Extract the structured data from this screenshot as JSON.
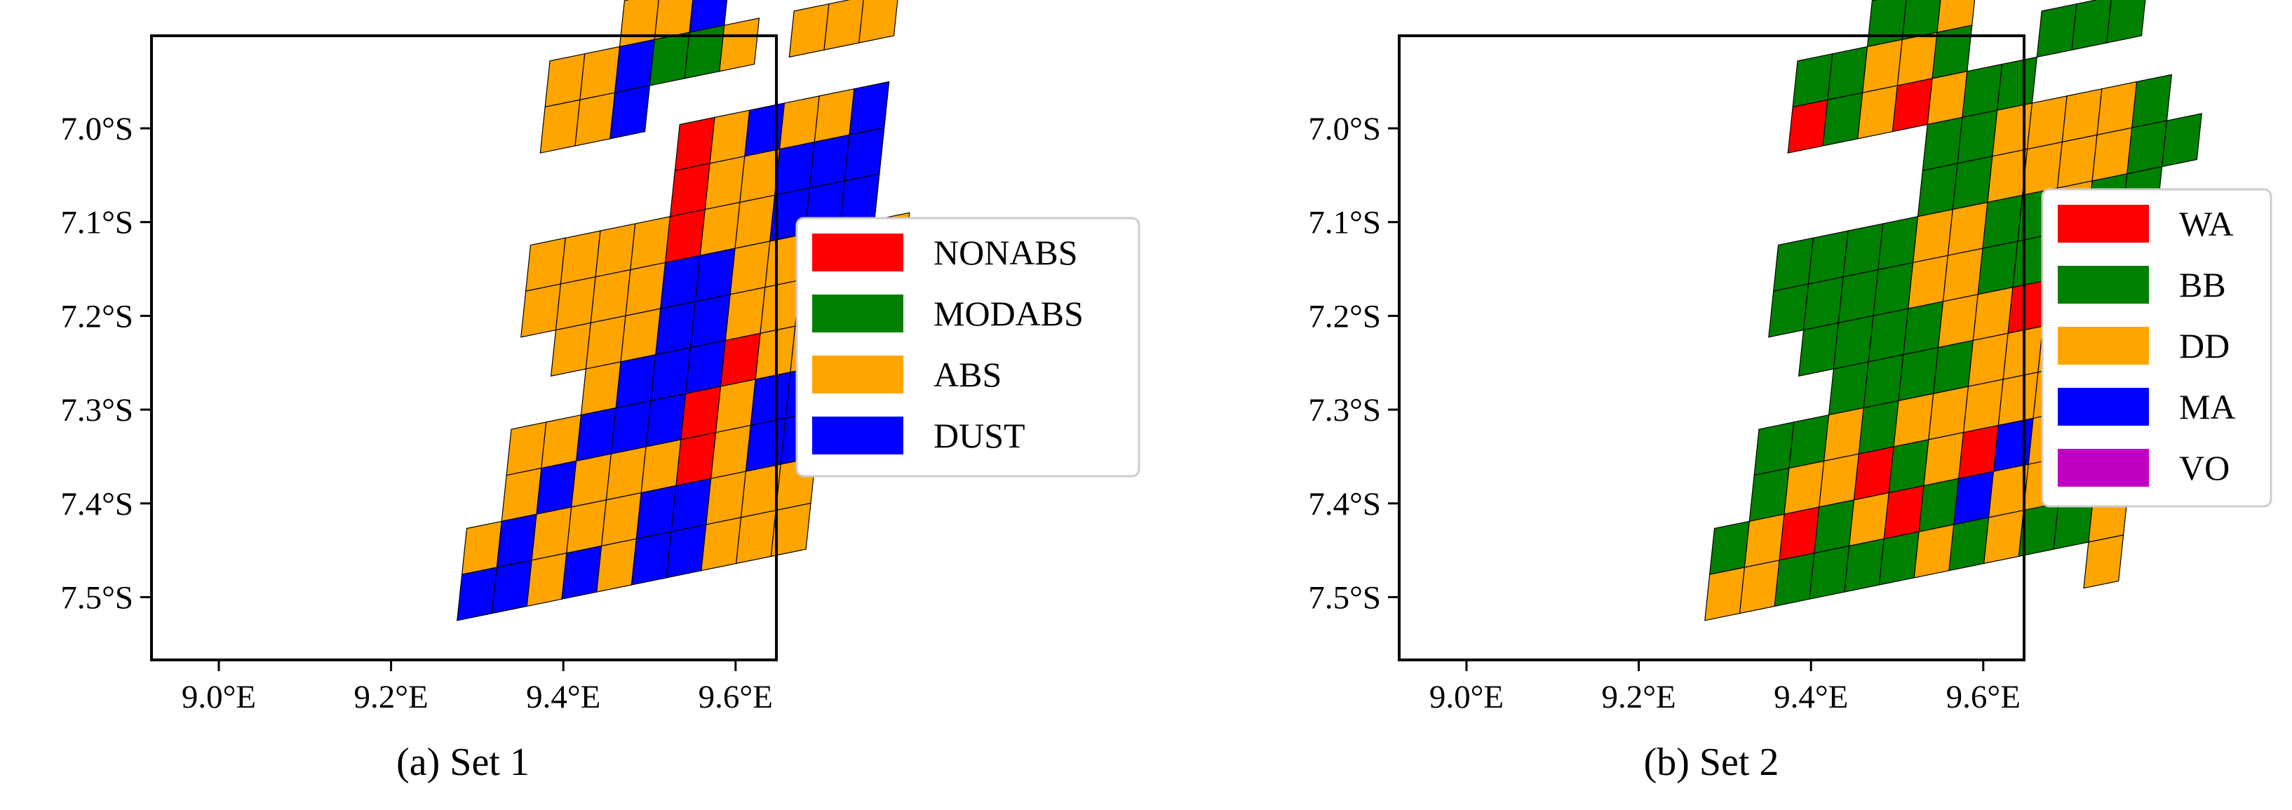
{
  "chart_data": [
    {
      "type": "heatmap",
      "caption": "(a) Set 1",
      "x_ticks": [
        {
          "value": 9.0,
          "label": "9.0°E"
        },
        {
          "value": 9.2,
          "label": "9.2°E"
        },
        {
          "value": 9.4,
          "label": "9.4°E"
        },
        {
          "value": 9.6,
          "label": "9.6°E"
        }
      ],
      "y_ticks": [
        {
          "value": 7.0,
          "label": "7.0°S"
        },
        {
          "value": 7.1,
          "label": "7.1°S"
        },
        {
          "value": 7.2,
          "label": "7.2°S"
        },
        {
          "value": 7.3,
          "label": "7.3°S"
        },
        {
          "value": 7.4,
          "label": "7.4°S"
        },
        {
          "value": 7.5,
          "label": "7.5°S"
        }
      ],
      "xlim": [
        8.93,
        9.64
      ],
      "ylim_south": [
        6.9,
        7.56
      ],
      "legend_position": "right",
      "legend": [
        {
          "key": "N",
          "label": "NONABS",
          "color": "#ff0000"
        },
        {
          "key": "M",
          "label": "MODABS",
          "color": "#008000"
        },
        {
          "key": "A",
          "label": "ABS",
          "color": "#ffa500"
        },
        {
          "key": "D",
          "label": "DUST",
          "color": "#0000ff"
        }
      ],
      "grid_origin": {
        "lon": 8.99,
        "lat": 6.88
      },
      "row_step": {
        "lon": -0.0053,
        "lat": 0.0489
      },
      "col_step": {
        "lon": 0.0409,
        "lat": -0.0079
      },
      "cells": [
        "..........ADD.........",
        "........AAD..AAA......",
        ".........ADMMA.AAA....",
        "...........N..AAD.....",
        "............N.ADDDD...",
        "............N...DDD...",
        "............N.......AA",
        "............ND.......D",
        "............D.........",
        "..........AA..........",
        "..........AA.........."
      ],
      "cells_v": [
        "..........AAD.........",
        "........ADMMA..AAA.....",
        "........ADMMAAADD......",
        "...........NAADAAD.....",
        "..........AAANADDDD....",
        "........AAAA.NAA.DDD...",
        "........AAAD.NA..DAA...",
        "........AAAAD.N.DDDA...",
        ".........AADDAAA.AAA...",
        ".........AADD..DDA.....",
        ".........AADA..........",
        "........AADA..........."
      ]
    }
  ],
  "sets": [
    {
      "caption": "(a) Set 1",
      "legend": [
        {
          "label": "NONABS",
          "color": "#ff0000"
        },
        {
          "label": "MODABS",
          "color": "#008000"
        },
        {
          "label": "ABS",
          "color": "#ffa500"
        },
        {
          "label": "DUST",
          "color": "#0000ff"
        }
      ],
      "rows": [
        "............AAD.........",
        "..........AADMMA.AAA....",
        "..........AAD...........",
        "..............NADAAD....",
        "..............NAADDD....",
        "..........AAAANAADDD....",
        "..........AAAADDAAADA...",
        "...........AAADDAAAD....",
        "............ADDDNAADM...",
        "..........AADDDNADDDA...",
        "..........ADAAANADDDA...",
        ".........ADAAADDAAA.....",
        ".........DDADADDAAA....."
      ]
    },
    {
      "caption": "(b) Set 2",
      "legend": [
        {
          "label": "WA",
          "color": "#ff0000"
        },
        {
          "label": "BB",
          "color": "#008000"
        },
        {
          "label": "DD",
          "color": "#ffa500"
        },
        {
          "label": "MA",
          "color": "#0000ff"
        },
        {
          "label": "VO",
          "color": "#c000c0"
        }
      ],
      "rows": [
        "............MMA.........",
        "..........MMAAM..MMM....",
        "..........NMANAMM.......",
        "..............MMAAAAM...",
        "..............MMAAAAMM..",
        "..........MMMMAAMMAMM...",
        "..........MMMMAAMMMMNA..",
        "...........MMMMAANMMMMA.",
        "............MMMMAAAAAAA.",
        "..........MMAMAAAAAAAM..",
        "..........MAANMANDAAAAM.",
        ".........MANMANMDAAMAA..",
        ".........AAMMMMAMAMMA...",
        "....................A..."
      ]
    }
  ],
  "panels": [
    {
      "caption": "(a) Set 1",
      "x_tick_labels": [
        "9.0°E",
        "9.2°E",
        "9.4°E",
        "9.6°E"
      ],
      "y_tick_labels": [
        "7.0°S",
        "7.1°S",
        "7.2°S",
        "7.3°S",
        "7.4°S",
        "7.5°S"
      ],
      "legend_labels": [
        "NONABS",
        "MODABS",
        "ABS",
        "DUST"
      ]
    },
    {
      "caption": "(b) Set 2",
      "x_tick_labels": [
        "9.0°E",
        "9.2°E",
        "9.4°E",
        "9.6°E"
      ],
      "y_tick_labels": [
        "7.0°S",
        "7.1°S",
        "7.2°S",
        "7.3°S",
        "7.4°S",
        "7.5°S"
      ],
      "legend_labels": [
        "WA",
        "BB",
        "DD",
        "MA",
        "VO"
      ]
    }
  ]
}
